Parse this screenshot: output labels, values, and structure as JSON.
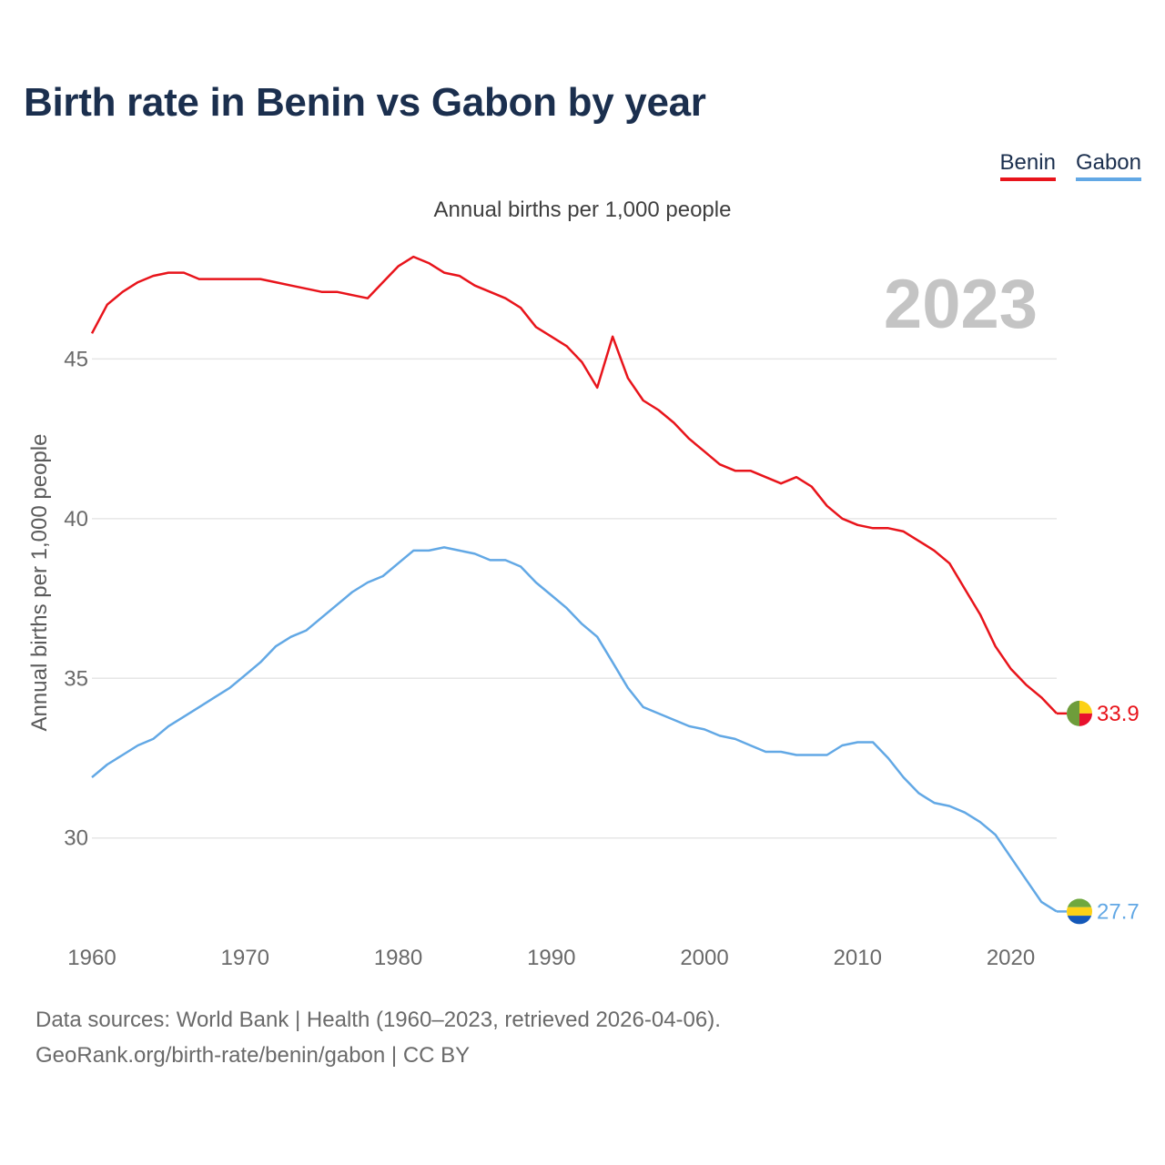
{
  "title": "Birth rate in Benin vs Gabon by year",
  "subtitle": "Annual births per 1,000 people",
  "legend": [
    {
      "label": "Benin",
      "color": "#e8141b"
    },
    {
      "label": "Gabon",
      "color": "#62a8e5"
    }
  ],
  "year_label": "2023",
  "source": {
    "line1": "Data sources: World Bank | Health (1960–2023, retrieved 2026-04-06).",
    "line2": "GeoRank.org/birth-rate/benin/gabon | CC BY"
  },
  "chart_data": {
    "type": "line",
    "title": "Birth rate in Benin vs Gabon by year",
    "xlabel": "",
    "ylabel": "Annual births per 1,000 people",
    "xlim": [
      1960,
      2023
    ],
    "ylim": [
      27,
      49
    ],
    "grid": true,
    "legend_position": "top-right",
    "x_ticks": [
      1960,
      1970,
      1980,
      1990,
      2000,
      2010,
      2020
    ],
    "y_ticks": [
      30,
      35,
      40,
      45
    ],
    "x": [
      1960,
      1961,
      1962,
      1963,
      1964,
      1965,
      1966,
      1967,
      1968,
      1969,
      1970,
      1971,
      1972,
      1973,
      1974,
      1975,
      1976,
      1977,
      1978,
      1979,
      1980,
      1981,
      1982,
      1983,
      1984,
      1985,
      1986,
      1987,
      1988,
      1989,
      1990,
      1991,
      1992,
      1993,
      1994,
      1995,
      1996,
      1997,
      1998,
      1999,
      2000,
      2001,
      2002,
      2003,
      2004,
      2005,
      2006,
      2007,
      2008,
      2009,
      2010,
      2011,
      2012,
      2013,
      2014,
      2015,
      2016,
      2017,
      2018,
      2019,
      2020,
      2021,
      2022,
      2023
    ],
    "series": [
      {
        "name": "Benin",
        "color": "#e8141b",
        "end_label": "33.9",
        "values": [
          45.8,
          46.7,
          47.1,
          47.4,
          47.6,
          47.7,
          47.7,
          47.5,
          47.5,
          47.5,
          47.5,
          47.5,
          47.4,
          47.3,
          47.2,
          47.1,
          47.1,
          47.0,
          46.9,
          47.4,
          47.9,
          48.2,
          48.0,
          47.7,
          47.6,
          47.3,
          47.1,
          46.9,
          46.6,
          46.0,
          45.7,
          45.4,
          44.9,
          44.1,
          45.7,
          44.4,
          43.7,
          43.4,
          43.0,
          42.5,
          42.1,
          41.7,
          41.5,
          41.5,
          41.3,
          41.1,
          41.3,
          41.0,
          40.4,
          40.0,
          39.8,
          39.7,
          39.7,
          39.6,
          39.3,
          39.0,
          38.6,
          37.8,
          37.0,
          36.0,
          35.3,
          34.8,
          34.4,
          33.9
        ]
      },
      {
        "name": "Gabon",
        "color": "#62a8e5",
        "end_label": "27.7",
        "values": [
          31.9,
          32.3,
          32.6,
          32.9,
          33.1,
          33.5,
          33.8,
          34.1,
          34.4,
          34.7,
          35.1,
          35.5,
          36.0,
          36.3,
          36.5,
          36.9,
          37.3,
          37.7,
          38.0,
          38.2,
          38.6,
          39.0,
          39.0,
          39.1,
          39.0,
          38.9,
          38.7,
          38.7,
          38.5,
          38.0,
          37.6,
          37.2,
          36.7,
          36.3,
          35.5,
          34.7,
          34.1,
          33.9,
          33.7,
          33.5,
          33.4,
          33.2,
          33.1,
          32.9,
          32.7,
          32.7,
          32.6,
          32.6,
          32.6,
          32.9,
          33.0,
          33.0,
          32.5,
          31.9,
          31.4,
          31.1,
          31.0,
          30.8,
          30.5,
          30.1,
          29.4,
          28.7,
          28.0,
          27.7
        ]
      }
    ]
  }
}
